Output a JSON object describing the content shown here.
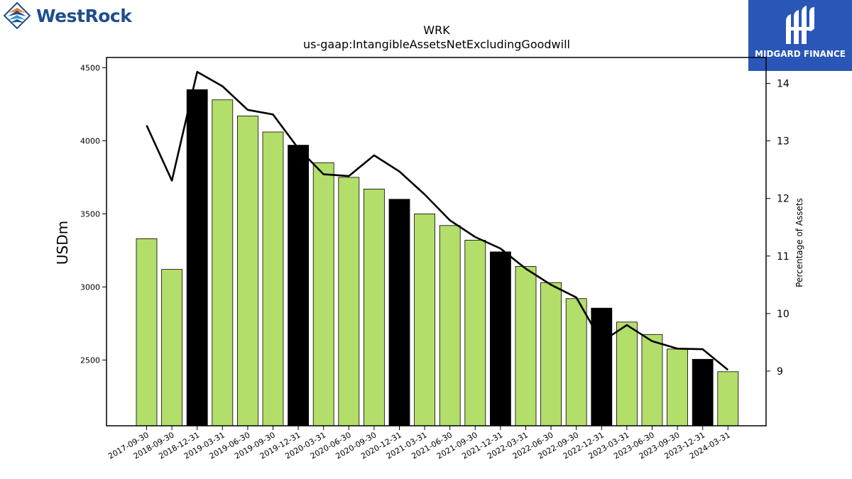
{
  "logos": {
    "left_brand": "WestRock",
    "right_brand": "MIDGARD FINANCE"
  },
  "chart_data": {
    "type": "bar",
    "title": "WRK",
    "subtitle": "us-gaap:IntangibleAssetsNetExcludingGoodwill",
    "ylabel": "USDm",
    "y2label": "Percentage of Assets",
    "ylim": [
      2050,
      4570
    ],
    "y2lim": [
      8.05,
      14.45
    ],
    "yticks": [
      2500,
      3000,
      3500,
      4000,
      4500
    ],
    "y2ticks": [
      9,
      10,
      11,
      12,
      13,
      14
    ],
    "categories": [
      "2017-09-30",
      "2018-09-30",
      "2018-12-31",
      "2019-03-31",
      "2019-06-30",
      "2019-09-30",
      "2019-12-31",
      "2020-03-31",
      "2020-06-30",
      "2020-09-30",
      "2020-12-31",
      "2021-03-31",
      "2021-06-30",
      "2021-09-30",
      "2021-12-31",
      "2022-03-31",
      "2022-06-30",
      "2022-09-30",
      "2022-12-31",
      "2023-03-31",
      "2023-06-30",
      "2023-09-30",
      "2023-12-31",
      "2024-03-31"
    ],
    "series": [
      {
        "axis": "left",
        "kind": "bar",
        "values": [
          3330,
          3120,
          4350,
          4280,
          4170,
          4060,
          3970,
          3850,
          3750,
          3670,
          3600,
          3500,
          3420,
          3320,
          3240,
          3140,
          3030,
          2920,
          2855,
          2760,
          2675,
          2575,
          2505,
          2420
        ]
      },
      {
        "axis": "right",
        "kind": "line",
        "values": [
          13.27,
          12.31,
          14.2,
          13.95,
          13.54,
          13.46,
          12.87,
          12.42,
          12.39,
          12.75,
          12.47,
          12.07,
          11.62,
          11.33,
          11.13,
          10.78,
          10.5,
          10.28,
          9.51,
          9.8,
          9.52,
          9.39,
          9.38,
          9.02
        ]
      }
    ],
    "bar_colors": {
      "default": "#b3de69",
      "highlight": "#000000",
      "edge": "#000000"
    },
    "highlight_categories": [
      "2018-12-31",
      "2019-12-31",
      "2020-12-31",
      "2021-12-31",
      "2022-12-31",
      "2023-12-31"
    ],
    "line_color": "#000000",
    "grid": false,
    "legend": "none"
  }
}
